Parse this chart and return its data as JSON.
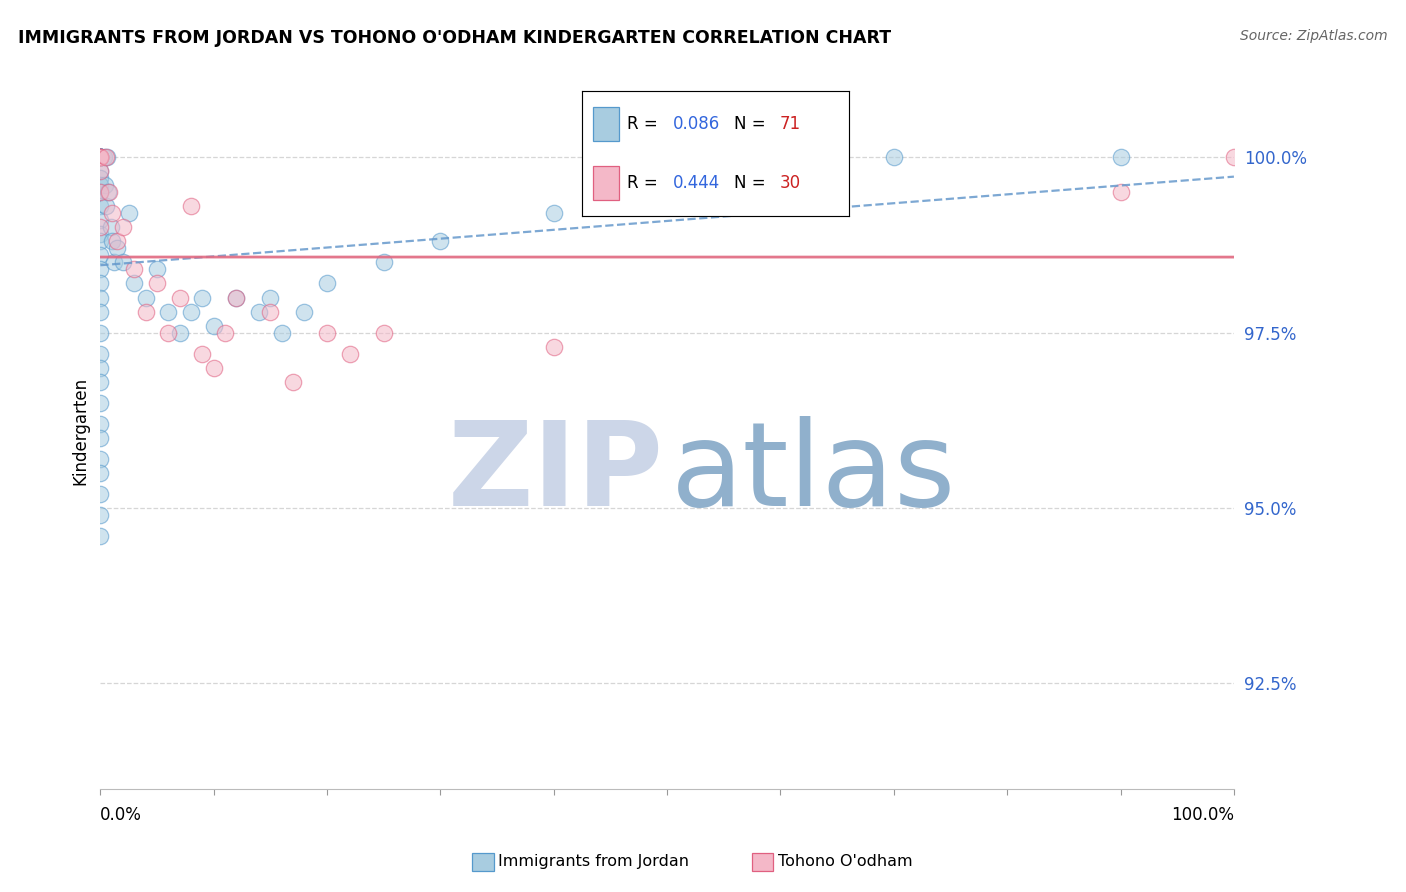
{
  "title": "IMMIGRANTS FROM JORDAN VS TOHONO O'ODHAM KINDERGARTEN CORRELATION CHART",
  "source": "Source: ZipAtlas.com",
  "ylabel_label": "Kindergarten",
  "ytick_labels": [
    "92.5%",
    "95.0%",
    "97.5%",
    "100.0%"
  ],
  "ytick_values": [
    92.5,
    95.0,
    97.5,
    100.0
  ],
  "xlim": [
    0.0,
    100.0
  ],
  "ylim": [
    91.0,
    101.2
  ],
  "blue_R_str": "0.086",
  "blue_N_str": "71",
  "pink_R_str": "0.444",
  "pink_N_str": "30",
  "blue_color": "#a8cce0",
  "pink_color": "#f4b8c8",
  "blue_edge_color": "#5599cc",
  "pink_edge_color": "#e06080",
  "blue_line_color": "#6699cc",
  "pink_line_color": "#e06880",
  "grid_color": "#cccccc",
  "watermark_zip_color": "#ccd6e8",
  "watermark_atlas_color": "#90b0cc",
  "blue_scatter_x": [
    0.0,
    0.0,
    0.0,
    0.0,
    0.0,
    0.0,
    0.0,
    0.0,
    0.0,
    0.0,
    0.0,
    0.0,
    0.0,
    0.0,
    0.0,
    0.0,
    0.0,
    0.0,
    0.0,
    0.0,
    0.0,
    0.0,
    0.0,
    0.0,
    0.0,
    0.0,
    0.0,
    0.0,
    0.0,
    0.0,
    0.0,
    0.0,
    0.0,
    0.0,
    0.0,
    0.0,
    0.0,
    0.0,
    0.0,
    0.0,
    0.3,
    0.4,
    0.5,
    0.6,
    0.7,
    0.9,
    1.0,
    1.2,
    1.5,
    2.0,
    2.5,
    3.0,
    4.0,
    5.0,
    6.0,
    7.0,
    8.0,
    9.0,
    10.0,
    12.0,
    14.0,
    15.0,
    16.0,
    18.0,
    20.0,
    25.0,
    30.0,
    40.0,
    50.0,
    70.0,
    90.0
  ],
  "blue_scatter_y": [
    100.0,
    100.0,
    100.0,
    100.0,
    100.0,
    100.0,
    100.0,
    100.0,
    100.0,
    100.0,
    100.0,
    100.0,
    100.0,
    100.0,
    100.0,
    99.8,
    99.7,
    99.6,
    99.5,
    99.3,
    99.1,
    98.9,
    98.8,
    98.6,
    98.4,
    98.2,
    98.0,
    97.8,
    97.5,
    97.2,
    97.0,
    96.8,
    96.5,
    96.2,
    96.0,
    95.7,
    95.5,
    95.2,
    94.9,
    94.6,
    100.0,
    99.6,
    99.3,
    100.0,
    99.5,
    99.0,
    98.8,
    98.5,
    98.7,
    98.5,
    99.2,
    98.2,
    98.0,
    98.4,
    97.8,
    97.5,
    97.8,
    98.0,
    97.6,
    98.0,
    97.8,
    98.0,
    97.5,
    97.8,
    98.2,
    98.5,
    98.8,
    99.2,
    99.5,
    100.0,
    100.0
  ],
  "pink_scatter_x": [
    0.0,
    0.0,
    0.0,
    0.0,
    0.0,
    0.0,
    0.0,
    0.5,
    0.8,
    1.0,
    1.5,
    2.0,
    3.0,
    4.0,
    5.0,
    6.0,
    7.0,
    8.0,
    9.0,
    10.0,
    11.0,
    12.0,
    15.0,
    17.0,
    20.0,
    22.0,
    25.0,
    40.0,
    90.0,
    100.0
  ],
  "pink_scatter_y": [
    100.0,
    100.0,
    100.0,
    100.0,
    99.8,
    99.5,
    99.0,
    100.0,
    99.5,
    99.2,
    98.8,
    99.0,
    98.4,
    97.8,
    98.2,
    97.5,
    98.0,
    99.3,
    97.2,
    97.0,
    97.5,
    98.0,
    97.8,
    96.8,
    97.5,
    97.2,
    97.5,
    97.3,
    99.5,
    100.0
  ]
}
